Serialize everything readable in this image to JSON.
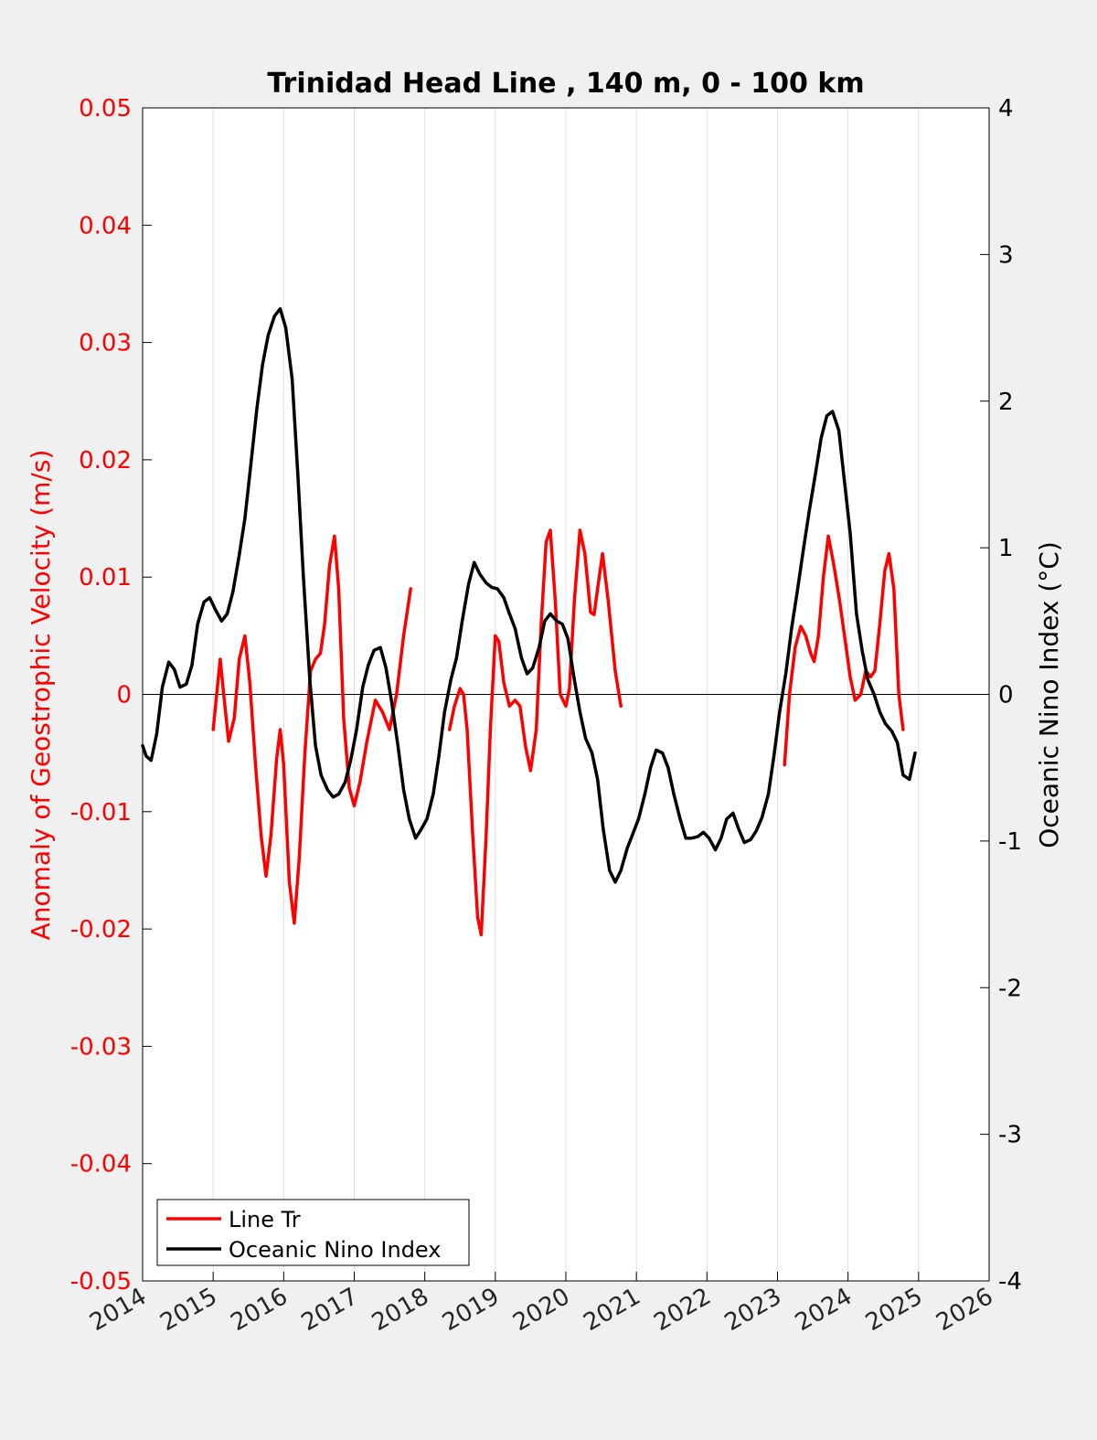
{
  "chart_data": {
    "type": "line",
    "title": "Trinidad Head Line , 140 m, 0 - 100 km",
    "xlabel": "",
    "xlim": [
      2014,
      2026
    ],
    "x_ticks": [
      "2014",
      "2015",
      "2016",
      "2017",
      "2018",
      "2019",
      "2020",
      "2021",
      "2022",
      "2023",
      "2024",
      "2025",
      "2026"
    ],
    "y_left": {
      "label": "Anomaly of Geostrophic Velocity (m/s)",
      "lim": [
        -0.05,
        0.05
      ],
      "ticks": [
        "-0.05",
        "-0.04",
        "-0.03",
        "-0.02",
        "-0.01",
        "0",
        "0.01",
        "0.02",
        "0.03",
        "0.04",
        "0.05"
      ],
      "color": "#ff0000"
    },
    "y_right": {
      "label": "Oceanic Nino Index (°C)",
      "lim": [
        -4,
        4
      ],
      "ticks": [
        "-4",
        "-3",
        "-2",
        "-1",
        "0",
        "1",
        "2",
        "3",
        "4"
      ],
      "color": "#000000"
    },
    "grid": "vertical",
    "legend": {
      "placement": "bottom-left",
      "entries": [
        {
          "name": "Line Tr",
          "color": "#ff0000"
        },
        {
          "name": "Oceanic Nino Index",
          "color": "#000000"
        }
      ]
    },
    "series": [
      {
        "name": "Line Tr",
        "axis": "left",
        "color": "#ff0000",
        "segments": [
          [
            [
              2015.0,
              -0.003
            ],
            [
              2015.05,
              0.0
            ],
            [
              2015.1,
              0.003
            ],
            [
              2015.15,
              0.0
            ],
            [
              2015.22,
              -0.004
            ],
            [
              2015.3,
              -0.002
            ],
            [
              2015.37,
              0.003
            ],
            [
              2015.45,
              0.005
            ],
            [
              2015.52,
              0.001
            ],
            [
              2015.6,
              -0.006
            ],
            [
              2015.68,
              -0.012
            ],
            [
              2015.75,
              -0.0155
            ],
            [
              2015.82,
              -0.012
            ],
            [
              2015.9,
              -0.0055
            ],
            [
              2015.95,
              -0.003
            ],
            [
              2016.0,
              -0.006
            ],
            [
              2016.08,
              -0.016
            ],
            [
              2016.15,
              -0.0195
            ],
            [
              2016.22,
              -0.014
            ],
            [
              2016.3,
              -0.005
            ],
            [
              2016.38,
              0.002
            ],
            [
              2016.45,
              0.003
            ],
            [
              2016.52,
              0.0035
            ],
            [
              2016.58,
              0.006
            ],
            [
              2016.65,
              0.011
            ],
            [
              2016.72,
              0.0135
            ],
            [
              2016.78,
              0.009
            ],
            [
              2016.85,
              -0.002
            ],
            [
              2016.93,
              -0.008
            ],
            [
              2017.0,
              -0.0095
            ],
            [
              2017.08,
              -0.0075
            ],
            [
              2017.18,
              -0.004
            ],
            [
              2017.3,
              -0.0005
            ],
            [
              2017.4,
              -0.0015
            ],
            [
              2017.5,
              -0.003
            ],
            [
              2017.6,
              0.0
            ],
            [
              2017.7,
              0.005
            ],
            [
              2017.8,
              0.009
            ]
          ],
          [
            [
              2018.35,
              -0.003
            ],
            [
              2018.42,
              -0.001
            ],
            [
              2018.5,
              0.0005
            ],
            [
              2018.55,
              0.0
            ],
            [
              2018.6,
              -0.003
            ],
            [
              2018.68,
              -0.012
            ],
            [
              2018.75,
              -0.019
            ],
            [
              2018.8,
              -0.0205
            ],
            [
              2018.87,
              -0.012
            ],
            [
              2018.93,
              -0.003
            ],
            [
              2019.0,
              0.005
            ],
            [
              2019.05,
              0.0045
            ],
            [
              2019.12,
              0.001
            ],
            [
              2019.2,
              -0.001
            ],
            [
              2019.28,
              -0.0005
            ],
            [
              2019.35,
              -0.001
            ],
            [
              2019.43,
              -0.0045
            ],
            [
              2019.5,
              -0.0065
            ],
            [
              2019.58,
              -0.003
            ],
            [
              2019.65,
              0.006
            ],
            [
              2019.72,
              0.013
            ],
            [
              2019.78,
              0.014
            ],
            [
              2019.85,
              0.008
            ],
            [
              2019.92,
              0.0
            ],
            [
              2020.0,
              -0.001
            ],
            [
              2020.05,
              0.0005
            ],
            [
              2020.12,
              0.008
            ],
            [
              2020.2,
              0.014
            ],
            [
              2020.27,
              0.012
            ],
            [
              2020.35,
              0.007
            ],
            [
              2020.4,
              0.0068
            ],
            [
              2020.45,
              0.009
            ],
            [
              2020.52,
              0.012
            ],
            [
              2020.6,
              0.008
            ],
            [
              2020.7,
              0.002
            ],
            [
              2020.78,
              -0.001
            ]
          ],
          [
            [
              2023.1,
              -0.006
            ],
            [
              2023.17,
              0.0
            ],
            [
              2023.25,
              0.004
            ],
            [
              2023.33,
              0.0058
            ],
            [
              2023.4,
              0.005
            ],
            [
              2023.47,
              0.0035
            ],
            [
              2023.52,
              0.0028
            ],
            [
              2023.58,
              0.005
            ],
            [
              2023.65,
              0.01
            ],
            [
              2023.72,
              0.0135
            ],
            [
              2023.8,
              0.011
            ],
            [
              2023.88,
              0.008
            ],
            [
              2023.95,
              0.005
            ],
            [
              2024.03,
              0.0015
            ],
            [
              2024.1,
              -0.0005
            ],
            [
              2024.18,
              0.0
            ],
            [
              2024.25,
              0.002
            ],
            [
              2024.32,
              0.0015
            ],
            [
              2024.38,
              0.002
            ],
            [
              2024.45,
              0.006
            ],
            [
              2024.52,
              0.0105
            ],
            [
              2024.58,
              0.012
            ],
            [
              2024.65,
              0.009
            ],
            [
              2024.72,
              0.0
            ],
            [
              2024.78,
              -0.003
            ]
          ]
        ]
      },
      {
        "name": "Oceanic Nino Index",
        "axis": "right",
        "color": "#000000",
        "segments": [
          [
            [
              2014.0,
              -0.35
            ],
            [
              2014.05,
              -0.42
            ],
            [
              2014.12,
              -0.45
            ],
            [
              2014.2,
              -0.27
            ],
            [
              2014.28,
              0.05
            ],
            [
              2014.37,
              0.22
            ],
            [
              2014.45,
              0.17
            ],
            [
              2014.53,
              0.05
            ],
            [
              2014.62,
              0.07
            ],
            [
              2014.7,
              0.2
            ],
            [
              2014.78,
              0.48
            ],
            [
              2014.87,
              0.63
            ],
            [
              2014.95,
              0.66
            ],
            [
              2015.03,
              0.58
            ],
            [
              2015.12,
              0.5
            ],
            [
              2015.2,
              0.55
            ],
            [
              2015.28,
              0.7
            ],
            [
              2015.37,
              0.95
            ],
            [
              2015.45,
              1.2
            ],
            [
              2015.53,
              1.55
            ],
            [
              2015.62,
              1.95
            ],
            [
              2015.7,
              2.25
            ],
            [
              2015.78,
              2.45
            ],
            [
              2015.87,
              2.58
            ],
            [
              2015.95,
              2.63
            ],
            [
              2016.03,
              2.5
            ],
            [
              2016.12,
              2.15
            ],
            [
              2016.2,
              1.5
            ],
            [
              2016.28,
              0.8
            ],
            [
              2016.37,
              0.1
            ],
            [
              2016.45,
              -0.35
            ],
            [
              2016.53,
              -0.55
            ],
            [
              2016.62,
              -0.65
            ],
            [
              2016.7,
              -0.7
            ],
            [
              2016.78,
              -0.68
            ],
            [
              2016.87,
              -0.6
            ],
            [
              2016.95,
              -0.45
            ],
            [
              2017.03,
              -0.25
            ],
            [
              2017.12,
              0.05
            ],
            [
              2017.2,
              0.2
            ],
            [
              2017.28,
              0.3
            ],
            [
              2017.37,
              0.32
            ],
            [
              2017.45,
              0.18
            ],
            [
              2017.53,
              -0.05
            ],
            [
              2017.62,
              -0.35
            ],
            [
              2017.7,
              -0.65
            ],
            [
              2017.78,
              -0.85
            ],
            [
              2017.87,
              -0.98
            ],
            [
              2017.95,
              -0.92
            ],
            [
              2018.03,
              -0.85
            ],
            [
              2018.12,
              -0.68
            ],
            [
              2018.2,
              -0.42
            ],
            [
              2018.28,
              -0.12
            ],
            [
              2018.37,
              0.1
            ],
            [
              2018.45,
              0.25
            ],
            [
              2018.53,
              0.5
            ],
            [
              2018.62,
              0.75
            ],
            [
              2018.7,
              0.9
            ],
            [
              2018.78,
              0.82
            ],
            [
              2018.87,
              0.76
            ],
            [
              2018.95,
              0.73
            ],
            [
              2019.03,
              0.72
            ],
            [
              2019.12,
              0.66
            ],
            [
              2019.2,
              0.55
            ],
            [
              2019.28,
              0.45
            ],
            [
              2019.37,
              0.25
            ],
            [
              2019.45,
              0.14
            ],
            [
              2019.53,
              0.18
            ],
            [
              2019.62,
              0.32
            ],
            [
              2019.7,
              0.5
            ],
            [
              2019.78,
              0.55
            ],
            [
              2019.87,
              0.5
            ],
            [
              2019.95,
              0.48
            ],
            [
              2020.03,
              0.38
            ],
            [
              2020.12,
              0.1
            ],
            [
              2020.2,
              -0.12
            ],
            [
              2020.28,
              -0.3
            ],
            [
              2020.37,
              -0.4
            ],
            [
              2020.45,
              -0.58
            ],
            [
              2020.53,
              -0.92
            ],
            [
              2020.62,
              -1.2
            ],
            [
              2020.7,
              -1.28
            ],
            [
              2020.78,
              -1.2
            ],
            [
              2020.87,
              -1.05
            ],
            [
              2020.95,
              -0.95
            ],
            [
              2021.03,
              -0.85
            ],
            [
              2021.12,
              -0.68
            ],
            [
              2021.2,
              -0.5
            ],
            [
              2021.28,
              -0.38
            ],
            [
              2021.37,
              -0.4
            ],
            [
              2021.45,
              -0.5
            ],
            [
              2021.53,
              -0.68
            ],
            [
              2021.62,
              -0.85
            ],
            [
              2021.7,
              -0.98
            ],
            [
              2021.78,
              -0.98
            ],
            [
              2021.87,
              -0.97
            ],
            [
              2021.95,
              -0.94
            ],
            [
              2022.03,
              -0.98
            ],
            [
              2022.12,
              -1.06
            ],
            [
              2022.2,
              -0.98
            ],
            [
              2022.28,
              -0.85
            ],
            [
              2022.37,
              -0.81
            ],
            [
              2022.45,
              -0.92
            ],
            [
              2022.53,
              -1.01
            ],
            [
              2022.62,
              -0.99
            ],
            [
              2022.7,
              -0.93
            ],
            [
              2022.78,
              -0.84
            ],
            [
              2022.87,
              -0.68
            ],
            [
              2022.95,
              -0.42
            ],
            [
              2023.03,
              -0.12
            ],
            [
              2023.12,
              0.15
            ],
            [
              2023.2,
              0.45
            ],
            [
              2023.28,
              0.7
            ],
            [
              2023.37,
              1.0
            ],
            [
              2023.45,
              1.25
            ],
            [
              2023.53,
              1.48
            ],
            [
              2023.62,
              1.75
            ],
            [
              2023.7,
              1.9
            ],
            [
              2023.78,
              1.93
            ],
            [
              2023.87,
              1.8
            ],
            [
              2023.95,
              1.45
            ],
            [
              2024.03,
              1.1
            ],
            [
              2024.12,
              0.55
            ],
            [
              2024.2,
              0.3
            ],
            [
              2024.28,
              0.1
            ],
            [
              2024.37,
              0.0
            ],
            [
              2024.45,
              -0.12
            ],
            [
              2024.53,
              -0.2
            ],
            [
              2024.62,
              -0.25
            ],
            [
              2024.7,
              -0.33
            ],
            [
              2024.78,
              -0.55
            ],
            [
              2024.87,
              -0.58
            ],
            [
              2024.95,
              -0.4
            ]
          ]
        ]
      }
    ]
  }
}
